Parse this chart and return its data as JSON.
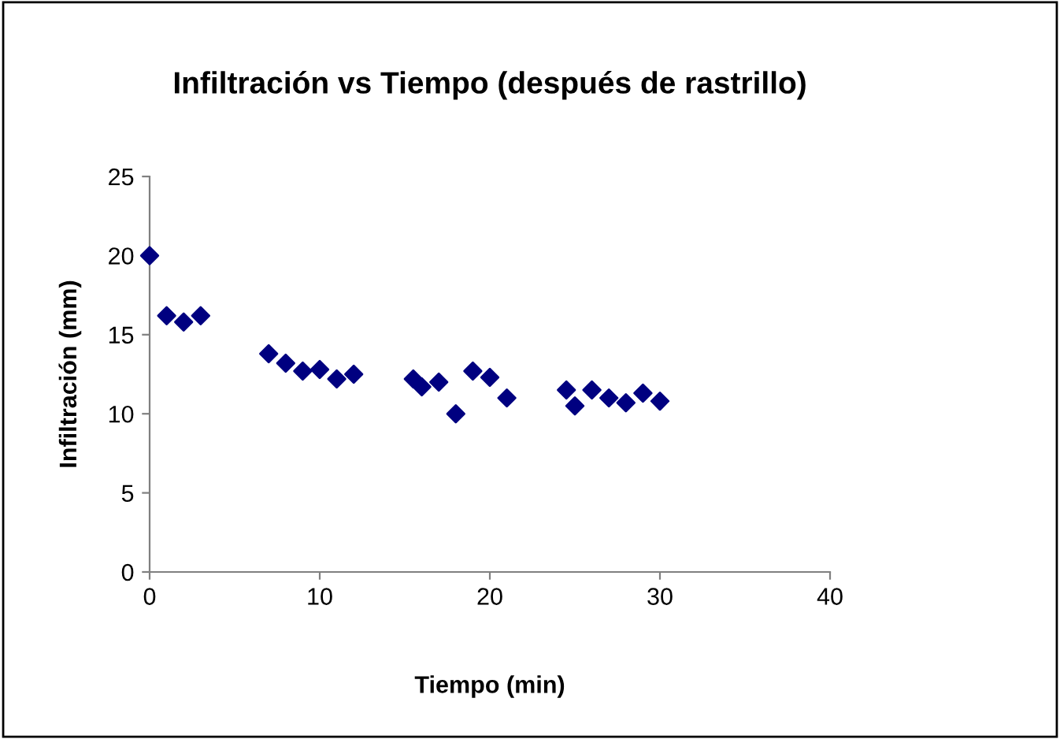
{
  "chart_data": {
    "type": "scatter",
    "title": "Infiltración vs Tiempo (después de rastrillo)",
    "xlabel": "Tiempo (min)",
    "ylabel": "Infiltración (mm)",
    "x": [
      0,
      1,
      2,
      3,
      7,
      8,
      9,
      10,
      11,
      12,
      15.5,
      16,
      17,
      18,
      19,
      20,
      21,
      24.5,
      25,
      26,
      27,
      28,
      29,
      30
    ],
    "series": [
      {
        "color": "#000080",
        "values": [
          20,
          16.2,
          15.8,
          16.2,
          13.8,
          13.2,
          12.7,
          12.8,
          12.2,
          12.5,
          12.2,
          11.7,
          12,
          10,
          12.7,
          12.3,
          11,
          11.5,
          10.5,
          11.5,
          11,
          10.7,
          11.3,
          10.8
        ]
      }
    ],
    "xlim": [
      0,
      40
    ],
    "xticks": [
      0,
      10,
      20,
      30,
      40
    ],
    "ylim": [
      0,
      25
    ],
    "yticks": [
      0,
      5,
      10,
      15,
      20,
      25
    ],
    "marker": "diamond",
    "grid": false,
    "legend": false
  }
}
